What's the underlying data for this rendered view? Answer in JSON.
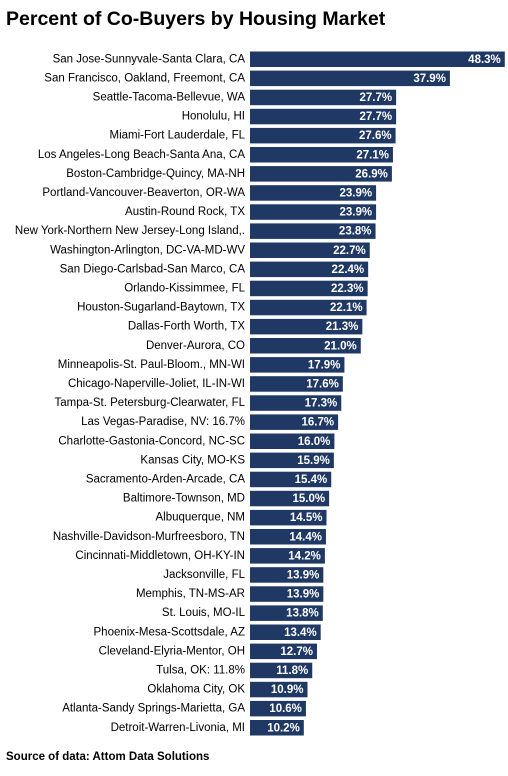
{
  "title": "Percent of Co-Buyers by Housing Market",
  "source": "Source of data: Attom Data Solutions",
  "colors": {
    "bar": "#1f3864",
    "bar_label": "#ffffff",
    "category_label": "#000000"
  },
  "chart_data": {
    "type": "bar",
    "orientation": "horizontal",
    "title": "Percent of Co-Buyers by Housing Market",
    "xlabel": "",
    "ylabel": "",
    "grid": false,
    "legend": "none",
    "xlim": [
      0,
      50
    ],
    "categories": [
      "San Jose-Sunnyvale-Santa Clara, CA",
      "San Francisco, Oakland, Freemont, CA",
      "Seattle-Tacoma-Bellevue, WA",
      "Honolulu, HI",
      "Miami-Fort Lauderdale, FL",
      "Los Angeles-Long Beach-Santa Ana, CA",
      "Boston-Cambridge-Quincy, MA-NH",
      "Portland-Vancouver-Beaverton, OR-WA",
      "Austin-Round Rock, TX",
      "New York-Northern New Jersey-Long Island,.",
      "Washington-Arlington, DC-VA-MD-WV",
      "San Diego-Carlsbad-San Marco, CA",
      "Orlando-Kissimmee, FL",
      "Houston-Sugarland-Baytown, TX",
      "Dallas-Forth Worth, TX",
      "Denver-Aurora, CO",
      "Minneapolis-St. Paul-Bloom., MN-WI",
      "Chicago-Naperville-Joliet, IL-IN-WI",
      "Tampa-St. Petersburg-Clearwater, FL",
      "Las Vegas-Paradise, NV: 16.7%",
      "Charlotte-Gastonia-Concord, NC-SC",
      "Kansas City, MO-KS",
      "Sacramento-Arden-Arcade, CA",
      "Baltimore-Townson, MD",
      "Albuquerque, NM",
      "Nashville-Davidson-Murfreesboro, TN",
      "Cincinnati-Middletown, OH-KY-IN",
      "Jacksonville, FL",
      "Memphis, TN-MS-AR",
      "St. Louis, MO-IL",
      "Phoenix-Mesa-Scottsdale, AZ",
      "Cleveland-Elyria-Mentor, OH",
      "Tulsa, OK: 11.8%",
      "Oklahoma City, OK",
      "Atlanta-Sandy Springs-Marietta, GA",
      "Detroit-Warren-Livonia, MI"
    ],
    "values": [
      48.3,
      37.9,
      27.7,
      27.7,
      27.6,
      27.1,
      26.9,
      23.9,
      23.9,
      23.8,
      22.7,
      22.4,
      22.3,
      22.1,
      21.3,
      21.0,
      17.9,
      17.6,
      17.3,
      16.7,
      16.0,
      15.9,
      15.4,
      15.0,
      14.5,
      14.4,
      14.2,
      13.9,
      13.9,
      13.8,
      13.4,
      12.7,
      11.8,
      10.9,
      10.6,
      10.2
    ],
    "value_labels": [
      "48.3%",
      "37.9%",
      "27.7%",
      "27.7%",
      "27.6%",
      "27.1%",
      "26.9%",
      "23.9%",
      "23.9%",
      "23.8%",
      "22.7%",
      "22.4%",
      "22.3%",
      "22.1%",
      "21.3%",
      "21.0%",
      "17.9%",
      "17.6%",
      "17.3%",
      "16.7%",
      "16.0%",
      "15.9%",
      "15.4%",
      "15.0%",
      "14.5%",
      "14.4%",
      "14.2%",
      "13.9%",
      "13.9%",
      "13.8%",
      "13.4%",
      "12.7%",
      "11.8%",
      "10.9%",
      "10.6%",
      "10.2%"
    ]
  }
}
